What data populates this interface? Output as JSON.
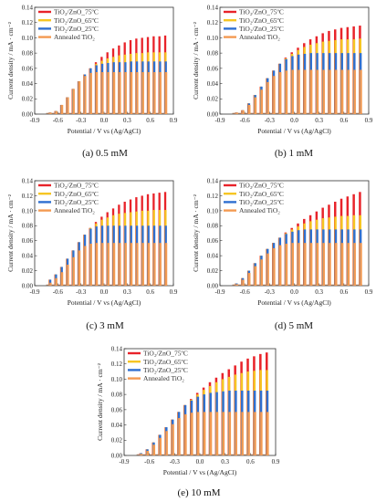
{
  "colors": {
    "red": "#e8232a",
    "yellow": "#f6c523",
    "blue": "#2f6fd0",
    "orange": "#f39a52"
  },
  "chart_data": [
    {
      "type": "bar",
      "caption": "(a) 0.5 mM",
      "xlabel": "Potential / V vs (Ag/AgCl)",
      "ylabel": "Current density / mA · cm⁻²",
      "xlim": [
        -0.9,
        0.9
      ],
      "ylim": [
        0,
        0.14
      ],
      "xticks": [
        "-0.9",
        "-0.6",
        "-0.3",
        "0.0",
        "0.3",
        "0.6",
        "0.9"
      ],
      "yticks": [
        "0.00",
        "0.02",
        "0.04",
        "0.06",
        "0.08",
        "0.10",
        "0.12",
        "0.14"
      ],
      "legend_position": "top-left",
      "series": [
        {
          "name": "TiO₂/ZnO_75ºC",
          "color": "red",
          "values": [
            0.002,
            0.004,
            0.012,
            0.022,
            0.033,
            0.043,
            0.052,
            0.06,
            0.068,
            0.075,
            0.081,
            0.086,
            0.09,
            0.094,
            0.097,
            0.099,
            0.1,
            0.101,
            0.102,
            0.102,
            0.103
          ]
        },
        {
          "name": "TiO₂/ZnO_65ºC",
          "color": "yellow",
          "values": [
            0.002,
            0.004,
            0.012,
            0.022,
            0.033,
            0.043,
            0.052,
            0.06,
            0.066,
            0.07,
            0.073,
            0.075,
            0.077,
            0.078,
            0.079,
            0.08,
            0.08,
            0.081,
            0.081,
            0.081,
            0.081
          ]
        },
        {
          "name": "TiO₂/ZnO_25ºC",
          "color": "blue",
          "values": [
            0.002,
            0.004,
            0.012,
            0.022,
            0.033,
            0.043,
            0.052,
            0.06,
            0.064,
            0.066,
            0.067,
            0.068,
            0.068,
            0.068,
            0.069,
            0.069,
            0.069,
            0.069,
            0.069,
            0.069,
            0.069
          ]
        },
        {
          "name": "Annealed TiO₂",
          "color": "orange",
          "values": [
            0.002,
            0.004,
            0.012,
            0.022,
            0.033,
            0.043,
            0.05,
            0.054,
            0.055,
            0.055,
            0.055,
            0.055,
            0.055,
            0.055,
            0.055,
            0.055,
            0.055,
            0.055,
            0.055,
            0.055,
            0.055
          ]
        }
      ]
    },
    {
      "type": "bar",
      "caption": "(b) 1 mM",
      "xlabel": "Potential / V vs (Ag/AgCl)",
      "ylabel": "Current density / mA · cm⁻²",
      "xlim": [
        -0.9,
        0.9
      ],
      "ylim": [
        0,
        0.14
      ],
      "xticks": [
        "-0.9",
        "-0.6",
        "-0.3",
        "0.0",
        "0.3",
        "0.6",
        "0.9"
      ],
      "yticks": [
        "0.00",
        "0.02",
        "0.04",
        "0.06",
        "0.08",
        "0.10",
        "0.12",
        "0.14"
      ],
      "legend_position": "top-left",
      "series": [
        {
          "name": "TiO₂/ZnO_75ºC",
          "color": "red",
          "values": [
            0.002,
            0.005,
            0.014,
            0.025,
            0.036,
            0.047,
            0.057,
            0.066,
            0.074,
            0.081,
            0.087,
            0.093,
            0.098,
            0.102,
            0.106,
            0.109,
            0.111,
            0.113,
            0.114,
            0.115,
            0.116
          ]
        },
        {
          "name": "TiO₂/ZnO_65ºC",
          "color": "yellow",
          "values": [
            0.002,
            0.005,
            0.014,
            0.025,
            0.036,
            0.047,
            0.057,
            0.066,
            0.073,
            0.079,
            0.084,
            0.088,
            0.091,
            0.093,
            0.095,
            0.096,
            0.097,
            0.098,
            0.098,
            0.098,
            0.099
          ]
        },
        {
          "name": "TiO₂/ZnO_25ºC",
          "color": "blue",
          "values": [
            0.002,
            0.005,
            0.014,
            0.025,
            0.036,
            0.047,
            0.057,
            0.066,
            0.072,
            0.076,
            0.078,
            0.079,
            0.08,
            0.08,
            0.08,
            0.08,
            0.08,
            0.08,
            0.08,
            0.08,
            0.08
          ]
        },
        {
          "name": "Annealed TiO₂",
          "color": "orange",
          "values": [
            0.002,
            0.005,
            0.012,
            0.022,
            0.032,
            0.042,
            0.05,
            0.055,
            0.057,
            0.058,
            0.058,
            0.058,
            0.058,
            0.058,
            0.058,
            0.058,
            0.058,
            0.058,
            0.058,
            0.058,
            0.058
          ]
        }
      ]
    },
    {
      "type": "bar",
      "caption": "(c) 3 mM",
      "xlabel": "Potential / V vs (Ag/AgCl)",
      "ylabel": "Current density / mA · cm⁻²",
      "xlim": [
        -0.9,
        0.9
      ],
      "ylim": [
        0,
        0.14
      ],
      "xticks": [
        "-0.9",
        "-0.6",
        "-0.3",
        "0.0",
        "0.3",
        "0.6",
        "0.9"
      ],
      "yticks": [
        "0.00",
        "0.02",
        "0.04",
        "0.06",
        "0.08",
        "0.10",
        "0.12",
        "0.14"
      ],
      "legend_position": "top-left",
      "series": [
        {
          "name": "TiO₂/ZnO_75ºC",
          "color": "red",
          "values": [
            0.008,
            0.015,
            0.025,
            0.036,
            0.047,
            0.058,
            0.068,
            0.077,
            0.085,
            0.092,
            0.098,
            0.103,
            0.108,
            0.112,
            0.115,
            0.118,
            0.12,
            0.122,
            0.123,
            0.124,
            0.125
          ]
        },
        {
          "name": "TiO₂/ZnO_65ºC",
          "color": "yellow",
          "values": [
            0.008,
            0.015,
            0.025,
            0.036,
            0.047,
            0.058,
            0.068,
            0.077,
            0.083,
            0.088,
            0.091,
            0.094,
            0.096,
            0.097,
            0.098,
            0.099,
            0.1,
            0.1,
            0.101,
            0.101,
            0.101
          ]
        },
        {
          "name": "TiO₂/ZnO_25ºC",
          "color": "blue",
          "values": [
            0.008,
            0.015,
            0.025,
            0.036,
            0.047,
            0.058,
            0.068,
            0.076,
            0.079,
            0.08,
            0.08,
            0.08,
            0.08,
            0.08,
            0.08,
            0.08,
            0.08,
            0.08,
            0.08,
            0.08,
            0.08
          ]
        },
        {
          "name": "Annealed TiO₂",
          "color": "orange",
          "values": [
            0.004,
            0.01,
            0.018,
            0.028,
            0.038,
            0.047,
            0.053,
            0.056,
            0.057,
            0.057,
            0.057,
            0.057,
            0.057,
            0.057,
            0.057,
            0.057,
            0.057,
            0.057,
            0.057,
            0.057,
            0.057
          ]
        }
      ]
    },
    {
      "type": "bar",
      "caption": "(d) 5 mM",
      "xlabel": "Potential / V vs (Ag/AgCl)",
      "ylabel": "Current density / mA · cm⁻²",
      "xlim": [
        -0.9,
        0.9
      ],
      "ylim": [
        0,
        0.14
      ],
      "xticks": [
        "-0.9",
        "-0.6",
        "-0.3",
        "0.0",
        "0.3",
        "0.6",
        "0.9"
      ],
      "yticks": [
        "0.00",
        "0.02",
        "0.04",
        "0.06",
        "0.08",
        "0.10",
        "0.12",
        "0.14"
      ],
      "legend_position": "top-left",
      "series": [
        {
          "name": "TiO₂/ZnO_75ºC",
          "color": "red",
          "values": [
            0.003,
            0.01,
            0.02,
            0.03,
            0.04,
            0.049,
            0.057,
            0.064,
            0.071,
            0.077,
            0.083,
            0.089,
            0.094,
            0.099,
            0.104,
            0.108,
            0.112,
            0.116,
            0.119,
            0.122,
            0.125
          ]
        },
        {
          "name": "TiO₂/ZnO_65ºC",
          "color": "yellow",
          "values": [
            0.003,
            0.01,
            0.02,
            0.03,
            0.04,
            0.049,
            0.057,
            0.064,
            0.07,
            0.075,
            0.079,
            0.083,
            0.086,
            0.088,
            0.09,
            0.091,
            0.092,
            0.093,
            0.093,
            0.094,
            0.094
          ]
        },
        {
          "name": "TiO₂/ZnO_25ºC",
          "color": "blue",
          "values": [
            0.003,
            0.01,
            0.02,
            0.03,
            0.04,
            0.049,
            0.057,
            0.064,
            0.069,
            0.072,
            0.074,
            0.075,
            0.075,
            0.075,
            0.075,
            0.075,
            0.075,
            0.075,
            0.075,
            0.075,
            0.075
          ]
        },
        {
          "name": "Annealed TiO₂",
          "color": "orange",
          "values": [
            0.002,
            0.008,
            0.017,
            0.026,
            0.035,
            0.043,
            0.05,
            0.054,
            0.056,
            0.057,
            0.057,
            0.057,
            0.057,
            0.057,
            0.057,
            0.057,
            0.057,
            0.057,
            0.057,
            0.057,
            0.057
          ]
        }
      ]
    },
    {
      "type": "bar",
      "caption": "(e) 10 mM",
      "xlabel": "Potential / V vs (Ag/AgCl)",
      "ylabel": "Current density / mA · cm⁻²",
      "xlim": [
        -0.9,
        0.9
      ],
      "ylim": [
        0,
        0.14
      ],
      "xticks": [
        "-0.9",
        "-0.6",
        "-0.3",
        "0.0",
        "0.3",
        "0.6",
        "0.9"
      ],
      "yticks": [
        "0.00",
        "0.02",
        "0.04",
        "0.06",
        "0.08",
        "0.10",
        "0.12",
        "0.14"
      ],
      "legend_position": "top-left",
      "series": [
        {
          "name": "TiO₂/ZnO_75ºC",
          "color": "red",
          "values": [
            0.003,
            0.008,
            0.017,
            0.027,
            0.037,
            0.047,
            0.057,
            0.066,
            0.074,
            0.082,
            0.089,
            0.096,
            0.102,
            0.108,
            0.113,
            0.118,
            0.123,
            0.127,
            0.13,
            0.133,
            0.135
          ]
        },
        {
          "name": "TiO₂/ZnO_65ºC",
          "color": "yellow",
          "values": [
            0.003,
            0.008,
            0.017,
            0.027,
            0.037,
            0.047,
            0.057,
            0.066,
            0.073,
            0.08,
            0.086,
            0.091,
            0.096,
            0.1,
            0.103,
            0.106,
            0.108,
            0.11,
            0.111,
            0.112,
            0.112
          ]
        },
        {
          "name": "TiO₂/ZnO_25ºC",
          "color": "blue",
          "values": [
            0.003,
            0.008,
            0.017,
            0.027,
            0.037,
            0.047,
            0.057,
            0.066,
            0.072,
            0.077,
            0.08,
            0.082,
            0.083,
            0.084,
            0.085,
            0.085,
            0.085,
            0.085,
            0.085,
            0.085,
            0.085
          ]
        },
        {
          "name": "Annealed TiO₂",
          "color": "orange",
          "values": [
            0.002,
            0.006,
            0.014,
            0.023,
            0.032,
            0.041,
            0.049,
            0.054,
            0.056,
            0.057,
            0.057,
            0.057,
            0.057,
            0.057,
            0.057,
            0.057,
            0.057,
            0.057,
            0.057,
            0.057,
            0.057
          ]
        }
      ]
    }
  ]
}
